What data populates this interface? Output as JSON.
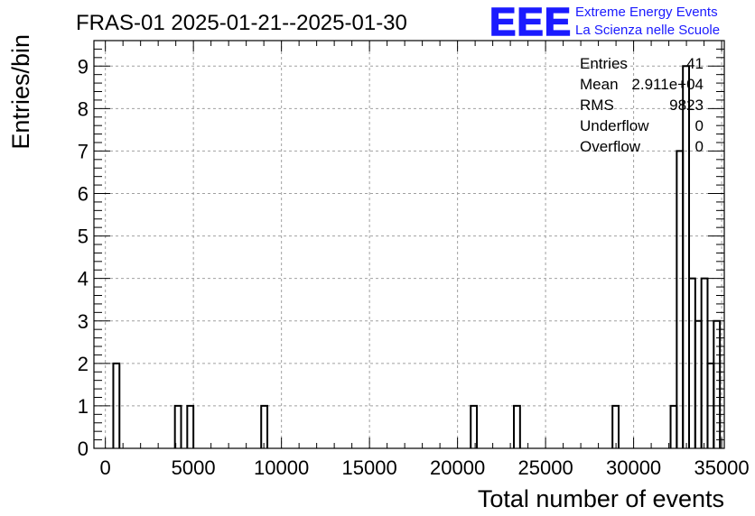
{
  "header": {
    "title": "FRAS-01 2025-01-21--2025-01-30",
    "logo_text": "EEE",
    "logo_line1": "Extreme Energy Events",
    "logo_line2": "La Scienza nelle Scuole"
  },
  "stats": [
    {
      "label": "Entries",
      "value": "41"
    },
    {
      "label": "Mean",
      "value": "2.911e+04"
    },
    {
      "label": "RMS",
      "value": "9823"
    },
    {
      "label": "Underflow",
      "value": "0"
    },
    {
      "label": "Overflow",
      "value": "0"
    }
  ],
  "chart_data": {
    "type": "bar",
    "style": "step-histogram",
    "xlabel": "Total number of events",
    "ylabel": "Entries/bin",
    "xlim": [
      -650,
      35150
    ],
    "ylim": [
      0,
      9.6
    ],
    "bin_width": 350,
    "x_ticks": [
      0,
      5000,
      10000,
      15000,
      20000,
      25000,
      30000,
      35000
    ],
    "x_tick_labels": [
      "0",
      "5000",
      "10000",
      "15000",
      "20000",
      "25000",
      "30000",
      "35000"
    ],
    "y_ticks": [
      0,
      1,
      2,
      3,
      4,
      5,
      6,
      7,
      8,
      9
    ],
    "y_tick_labels": [
      "0",
      "1",
      "2",
      "3",
      "4",
      "5",
      "6",
      "7",
      "8",
      "9"
    ],
    "grid": true,
    "bins": [
      {
        "x_low": 450,
        "value": 2
      },
      {
        "x_low": 3950,
        "value": 1
      },
      {
        "x_low": 4650,
        "value": 1
      },
      {
        "x_low": 8850,
        "value": 1
      },
      {
        "x_low": 20750,
        "value": 1
      },
      {
        "x_low": 23200,
        "value": 1
      },
      {
        "x_low": 28800,
        "value": 1
      },
      {
        "x_low": 32100,
        "value": 1
      },
      {
        "x_low": 32450,
        "value": 7
      },
      {
        "x_low": 32800,
        "value": 9
      },
      {
        "x_low": 33150,
        "value": 4
      },
      {
        "x_low": 33500,
        "value": 3
      },
      {
        "x_low": 33850,
        "value": 4
      },
      {
        "x_low": 34200,
        "value": 2
      },
      {
        "x_low": 34550,
        "value": 3
      }
    ],
    "colors": {
      "line": "#000000",
      "grid": "#a0a0a0",
      "logo": "#1a1aff"
    }
  }
}
